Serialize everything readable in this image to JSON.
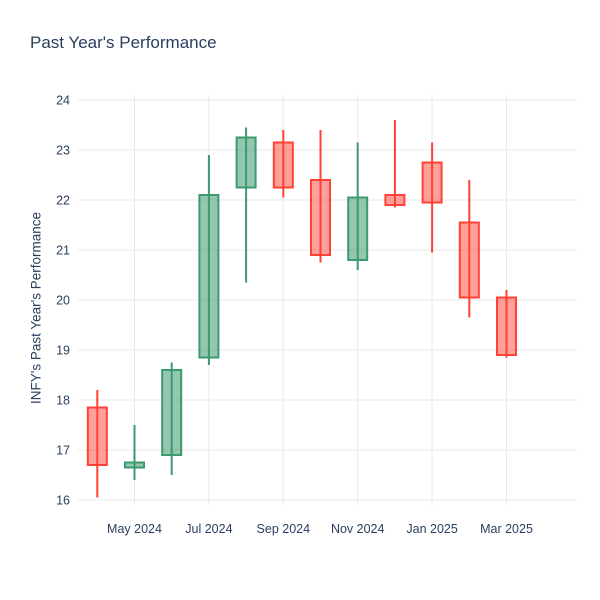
{
  "title": "Past Year's Performance",
  "colors": {
    "background": "#ffffff",
    "text": "#2a3f5f",
    "grid": "#e9e9e9",
    "increasing_line": "#3d9970",
    "increasing_fill": "rgba(61,153,112,0.55)",
    "decreasing_line": "#ff4136",
    "decreasing_fill": "rgba(255,65,54,0.5)"
  },
  "chart_data": {
    "type": "candlestick",
    "title": "Past Year's Performance",
    "ylabel": "INFY's Past Year's Performance",
    "xlabel": "",
    "categories": [
      "Apr 2024",
      "May 2024",
      "Jun 2024",
      "Jul 2024",
      "Aug 2024",
      "Sep 2024",
      "Oct 2024",
      "Nov 2024",
      "Dec 2024",
      "Jan 2025",
      "Feb 2025",
      "Mar 2025"
    ],
    "open": [
      17.85,
      16.65,
      16.9,
      18.85,
      22.25,
      23.15,
      22.4,
      20.8,
      22.1,
      22.75,
      21.55,
      20.05
    ],
    "high": [
      18.2,
      17.5,
      18.75,
      22.9,
      23.45,
      23.4,
      23.4,
      23.15,
      23.6,
      23.15,
      22.4,
      20.2
    ],
    "low": [
      16.05,
      16.4,
      16.5,
      18.7,
      20.35,
      22.05,
      20.75,
      20.6,
      21.85,
      20.95,
      19.65,
      18.85
    ],
    "close": [
      16.7,
      16.75,
      18.6,
      22.1,
      23.25,
      22.25,
      20.9,
      22.05,
      21.9,
      21.95,
      20.05,
      18.9
    ],
    "x_tick_labels": [
      "May 2024",
      "Jul 2024",
      "Sep 2024",
      "Nov 2024",
      "Jan 2025",
      "Mar 2025"
    ],
    "x_tick_indices": [
      1,
      3,
      5,
      7,
      9,
      11
    ],
    "y_ticks": [
      16,
      17,
      18,
      19,
      20,
      21,
      22,
      23,
      24
    ],
    "ylim": [
      15.9,
      24.1
    ],
    "grid": true,
    "legend": false
  }
}
